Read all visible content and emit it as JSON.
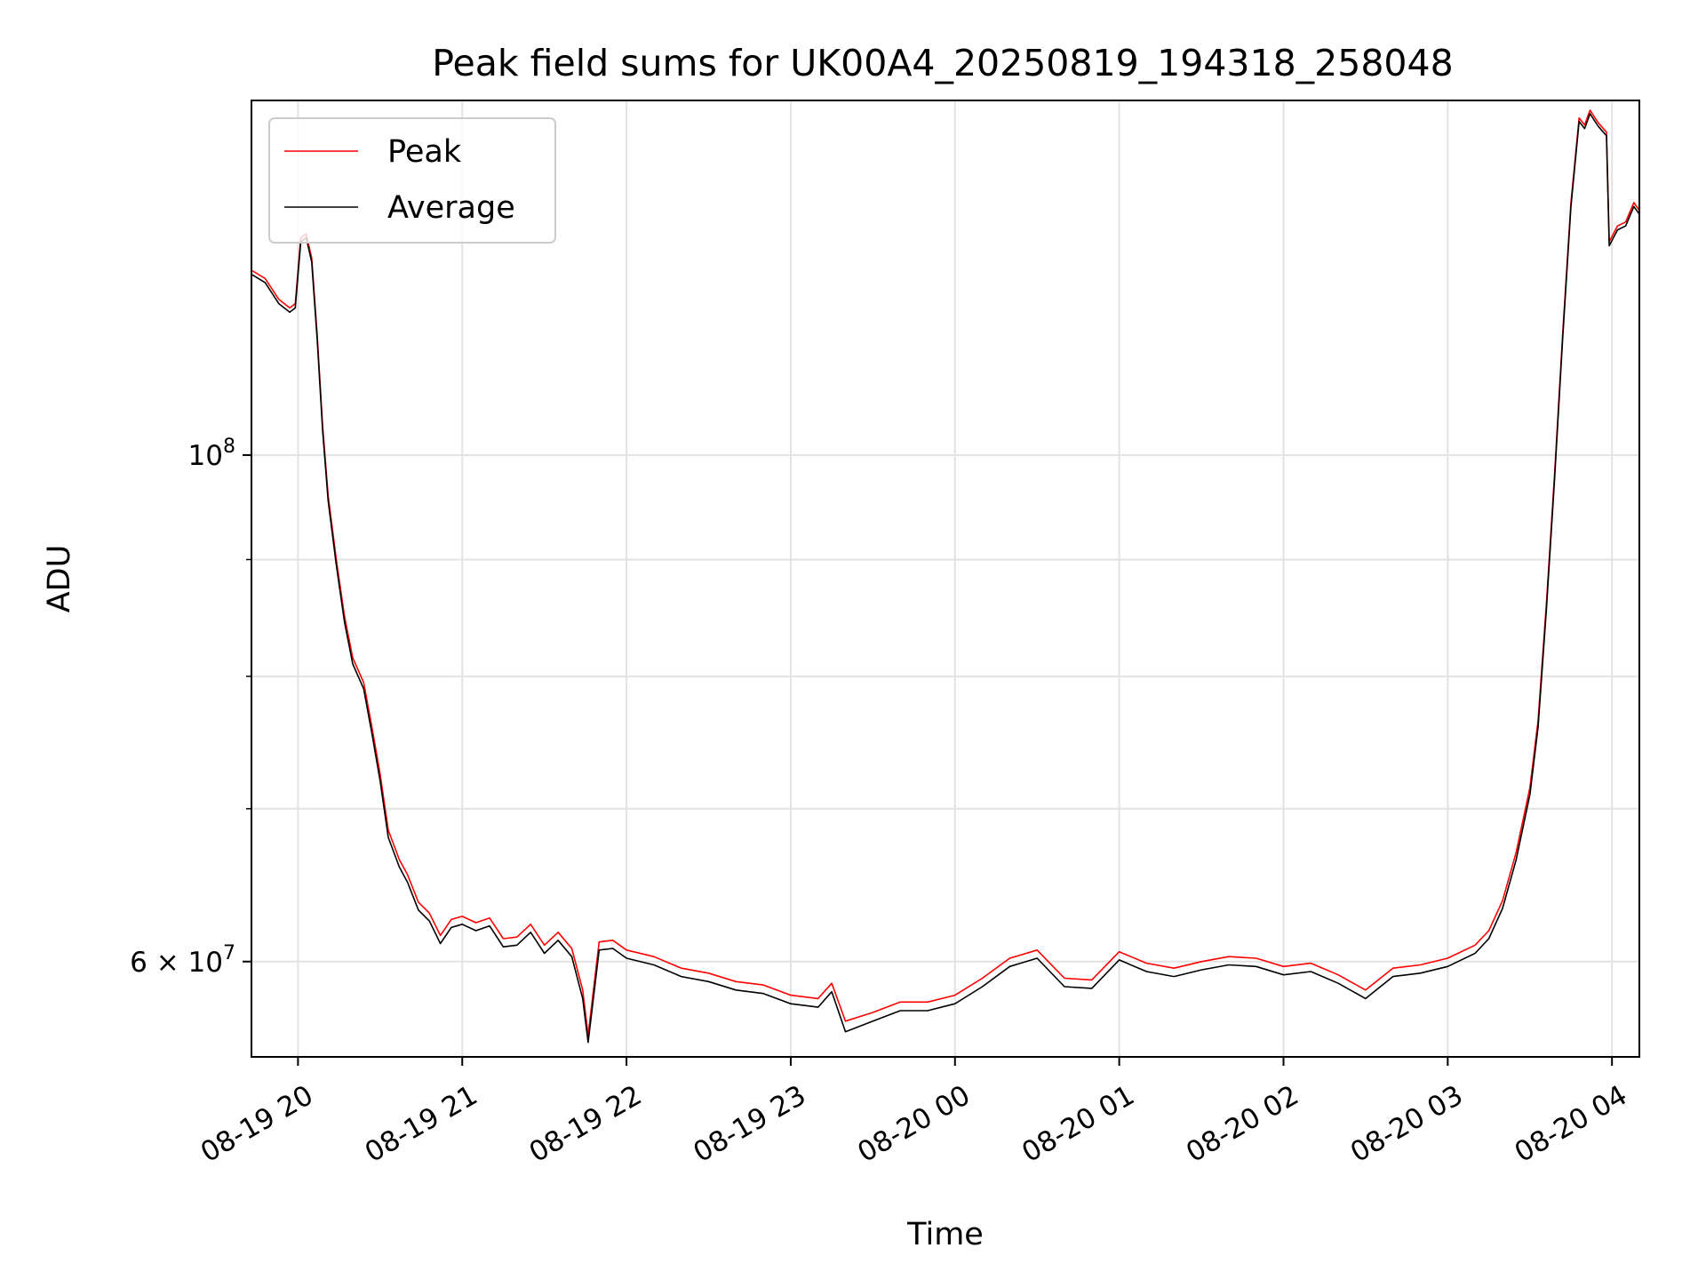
{
  "chart_data": {
    "type": "line",
    "title": "Peak field sums for UK00A4_20250819_194318_258048",
    "xlabel": "Time",
    "ylabel": "ADU",
    "yscale": "log",
    "grid": true,
    "legend_position": "upper-left",
    "xlim": [
      "2025-08-19 19:43",
      "2025-08-20 04:10"
    ],
    "ylim": [
      54500000,
      143000000
    ],
    "x_ticks": [
      {
        "t": "2025-08-19 20:00",
        "label": "08-19 20"
      },
      {
        "t": "2025-08-19 21:00",
        "label": "08-19 21"
      },
      {
        "t": "2025-08-19 22:00",
        "label": "08-19 22"
      },
      {
        "t": "2025-08-19 23:00",
        "label": "08-19 23"
      },
      {
        "t": "2025-08-20 00:00",
        "label": "08-20 00"
      },
      {
        "t": "2025-08-20 01:00",
        "label": "08-20 01"
      },
      {
        "t": "2025-08-20 02:00",
        "label": "08-20 02"
      },
      {
        "t": "2025-08-20 03:00",
        "label": "08-20 03"
      },
      {
        "t": "2025-08-20 04:00",
        "label": "08-20 04"
      }
    ],
    "y_ticks_major": [
      {
        "value": 100000000,
        "label_base": "10",
        "label_exp": "8"
      },
      {
        "value": 60000000,
        "label_base": "6 × 10",
        "label_exp": "7"
      }
    ],
    "y_ticks_minor": [
      70000000,
      80000000,
      90000000
    ],
    "series": [
      {
        "name": "Peak",
        "color": "#ff0000",
        "points": [
          [
            "2025-08-19 19:43",
            120500000
          ],
          [
            "2025-08-19 19:48",
            119500000
          ],
          [
            "2025-08-19 19:53",
            117000000
          ],
          [
            "2025-08-19 19:57",
            116000000
          ],
          [
            "2025-08-19 19:59",
            116500000
          ],
          [
            "2025-08-19 20:01",
            124500000
          ],
          [
            "2025-08-19 20:03",
            125000000
          ],
          [
            "2025-08-19 20:05",
            122000000
          ],
          [
            "2025-08-19 20:07",
            113000000
          ],
          [
            "2025-08-19 20:09",
            103000000
          ],
          [
            "2025-08-19 20:11",
            96000000
          ],
          [
            "2025-08-19 20:14",
            90000000
          ],
          [
            "2025-08-19 20:17",
            85000000
          ],
          [
            "2025-08-19 20:20",
            81500000
          ],
          [
            "2025-08-19 20:24",
            79500000
          ],
          [
            "2025-08-19 20:27",
            76000000
          ],
          [
            "2025-08-19 20:30",
            72500000
          ],
          [
            "2025-08-19 20:33",
            68500000
          ],
          [
            "2025-08-19 20:37",
            66500000
          ],
          [
            "2025-08-19 20:40",
            65500000
          ],
          [
            "2025-08-19 20:44",
            63700000
          ],
          [
            "2025-08-19 20:48",
            63000000
          ],
          [
            "2025-08-19 20:52",
            61600000
          ],
          [
            "2025-08-19 20:56",
            62600000
          ],
          [
            "2025-08-19 21:00",
            62800000
          ],
          [
            "2025-08-19 21:05",
            62400000
          ],
          [
            "2025-08-19 21:10",
            62700000
          ],
          [
            "2025-08-19 21:15",
            61400000
          ],
          [
            "2025-08-19 21:20",
            61500000
          ],
          [
            "2025-08-19 21:25",
            62300000
          ],
          [
            "2025-08-19 21:30",
            61000000
          ],
          [
            "2025-08-19 21:35",
            61800000
          ],
          [
            "2025-08-19 21:40",
            60800000
          ],
          [
            "2025-08-19 21:44",
            58300000
          ],
          [
            "2025-08-19 21:46",
            55700000
          ],
          [
            "2025-08-19 21:50",
            61200000
          ],
          [
            "2025-08-19 21:55",
            61300000
          ],
          [
            "2025-08-19 22:00",
            60700000
          ],
          [
            "2025-08-19 22:10",
            60300000
          ],
          [
            "2025-08-19 22:20",
            59600000
          ],
          [
            "2025-08-19 22:30",
            59300000
          ],
          [
            "2025-08-19 22:40",
            58800000
          ],
          [
            "2025-08-19 22:50",
            58600000
          ],
          [
            "2025-08-19 23:00",
            58000000
          ],
          [
            "2025-08-19 23:10",
            57800000
          ],
          [
            "2025-08-19 23:15",
            58700000
          ],
          [
            "2025-08-19 23:20",
            56500000
          ],
          [
            "2025-08-19 23:30",
            57000000
          ],
          [
            "2025-08-19 23:40",
            57600000
          ],
          [
            "2025-08-19 23:50",
            57600000
          ],
          [
            "2025-08-20 00:00",
            58000000
          ],
          [
            "2025-08-20 00:10",
            59000000
          ],
          [
            "2025-08-20 00:20",
            60200000
          ],
          [
            "2025-08-20 00:30",
            60700000
          ],
          [
            "2025-08-20 00:40",
            59000000
          ],
          [
            "2025-08-20 00:50",
            58900000
          ],
          [
            "2025-08-20 01:00",
            60600000
          ],
          [
            "2025-08-20 01:10",
            59900000
          ],
          [
            "2025-08-20 01:20",
            59600000
          ],
          [
            "2025-08-20 01:30",
            60000000
          ],
          [
            "2025-08-20 01:40",
            60300000
          ],
          [
            "2025-08-20 01:50",
            60200000
          ],
          [
            "2025-08-20 02:00",
            59700000
          ],
          [
            "2025-08-20 02:10",
            59900000
          ],
          [
            "2025-08-20 02:20",
            59200000
          ],
          [
            "2025-08-20 02:30",
            58300000
          ],
          [
            "2025-08-20 02:40",
            59600000
          ],
          [
            "2025-08-20 02:50",
            59800000
          ],
          [
            "2025-08-20 03:00",
            60200000
          ],
          [
            "2025-08-20 03:10",
            61000000
          ],
          [
            "2025-08-20 03:15",
            61900000
          ],
          [
            "2025-08-20 03:20",
            63800000
          ],
          [
            "2025-08-20 03:25",
            67000000
          ],
          [
            "2025-08-20 03:30",
            71500000
          ],
          [
            "2025-08-20 03:33",
            76500000
          ],
          [
            "2025-08-20 03:36",
            86000000
          ],
          [
            "2025-08-20 03:39",
            98000000
          ],
          [
            "2025-08-20 03:42",
            113000000
          ],
          [
            "2025-08-20 03:45",
            129000000
          ],
          [
            "2025-08-20 03:48",
            140500000
          ],
          [
            "2025-08-20 03:50",
            139500000
          ],
          [
            "2025-08-20 03:52",
            141600000
          ],
          [
            "2025-08-20 03:55",
            139800000
          ],
          [
            "2025-08-20 03:58",
            138500000
          ],
          [
            "2025-08-20 03:59",
            124000000
          ],
          [
            "2025-08-20 04:02",
            126000000
          ],
          [
            "2025-08-20 04:05",
            126500000
          ],
          [
            "2025-08-20 04:08",
            129000000
          ],
          [
            "2025-08-20 04:10",
            128000000
          ]
        ]
      },
      {
        "name": "Average",
        "color": "#000000",
        "points": [
          [
            "2025-08-19 19:43",
            120000000
          ],
          [
            "2025-08-19 19:48",
            119000000
          ],
          [
            "2025-08-19 19:53",
            116500000
          ],
          [
            "2025-08-19 19:57",
            115500000
          ],
          [
            "2025-08-19 19:59",
            116000000
          ],
          [
            "2025-08-19 20:01",
            124000000
          ],
          [
            "2025-08-19 20:03",
            124500000
          ],
          [
            "2025-08-19 20:05",
            121500000
          ],
          [
            "2025-08-19 20:07",
            112500000
          ],
          [
            "2025-08-19 20:09",
            102500000
          ],
          [
            "2025-08-19 20:11",
            95500000
          ],
          [
            "2025-08-19 20:14",
            89500000
          ],
          [
            "2025-08-19 20:17",
            84500000
          ],
          [
            "2025-08-19 20:20",
            81000000
          ],
          [
            "2025-08-19 20:24",
            79000000
          ],
          [
            "2025-08-19 20:27",
            75500000
          ],
          [
            "2025-08-19 20:30",
            72000000
          ],
          [
            "2025-08-19 20:33",
            68000000
          ],
          [
            "2025-08-19 20:37",
            66000000
          ],
          [
            "2025-08-19 20:40",
            65000000
          ],
          [
            "2025-08-19 20:44",
            63200000
          ],
          [
            "2025-08-19 20:48",
            62500000
          ],
          [
            "2025-08-19 20:52",
            61100000
          ],
          [
            "2025-08-19 20:56",
            62100000
          ],
          [
            "2025-08-19 21:00",
            62300000
          ],
          [
            "2025-08-19 21:05",
            61900000
          ],
          [
            "2025-08-19 21:10",
            62200000
          ],
          [
            "2025-08-19 21:15",
            60900000
          ],
          [
            "2025-08-19 21:20",
            61000000
          ],
          [
            "2025-08-19 21:25",
            61800000
          ],
          [
            "2025-08-19 21:30",
            60500000
          ],
          [
            "2025-08-19 21:35",
            61300000
          ],
          [
            "2025-08-19 21:40",
            60300000
          ],
          [
            "2025-08-19 21:44",
            57800000
          ],
          [
            "2025-08-19 21:46",
            55300000
          ],
          [
            "2025-08-19 21:50",
            60700000
          ],
          [
            "2025-08-19 21:55",
            60800000
          ],
          [
            "2025-08-19 22:00",
            60200000
          ],
          [
            "2025-08-19 22:10",
            59800000
          ],
          [
            "2025-08-19 22:20",
            59100000
          ],
          [
            "2025-08-19 22:30",
            58800000
          ],
          [
            "2025-08-19 22:40",
            58300000
          ],
          [
            "2025-08-19 22:50",
            58100000
          ],
          [
            "2025-08-19 23:00",
            57500000
          ],
          [
            "2025-08-19 23:10",
            57300000
          ],
          [
            "2025-08-19 23:15",
            58200000
          ],
          [
            "2025-08-19 23:20",
            55900000
          ],
          [
            "2025-08-19 23:30",
            56500000
          ],
          [
            "2025-08-19 23:40",
            57100000
          ],
          [
            "2025-08-19 23:50",
            57100000
          ],
          [
            "2025-08-20 00:00",
            57500000
          ],
          [
            "2025-08-20 00:10",
            58500000
          ],
          [
            "2025-08-20 00:20",
            59700000
          ],
          [
            "2025-08-20 00:30",
            60200000
          ],
          [
            "2025-08-20 00:40",
            58500000
          ],
          [
            "2025-08-20 00:50",
            58400000
          ],
          [
            "2025-08-20 01:00",
            60100000
          ],
          [
            "2025-08-20 01:10",
            59400000
          ],
          [
            "2025-08-20 01:20",
            59100000
          ],
          [
            "2025-08-20 01:30",
            59500000
          ],
          [
            "2025-08-20 01:40",
            59800000
          ],
          [
            "2025-08-20 01:50",
            59700000
          ],
          [
            "2025-08-20 02:00",
            59200000
          ],
          [
            "2025-08-20 02:10",
            59400000
          ],
          [
            "2025-08-20 02:20",
            58700000
          ],
          [
            "2025-08-20 02:30",
            57800000
          ],
          [
            "2025-08-20 02:40",
            59100000
          ],
          [
            "2025-08-20 02:50",
            59300000
          ],
          [
            "2025-08-20 03:00",
            59700000
          ],
          [
            "2025-08-20 03:10",
            60500000
          ],
          [
            "2025-08-20 03:15",
            61400000
          ],
          [
            "2025-08-20 03:20",
            63300000
          ],
          [
            "2025-08-20 03:25",
            66500000
          ],
          [
            "2025-08-20 03:30",
            71000000
          ],
          [
            "2025-08-20 03:33",
            76000000
          ],
          [
            "2025-08-20 03:36",
            85500000
          ],
          [
            "2025-08-20 03:39",
            97500000
          ],
          [
            "2025-08-20 03:42",
            112500000
          ],
          [
            "2025-08-20 03:45",
            128500000
          ],
          [
            "2025-08-20 03:48",
            140000000
          ],
          [
            "2025-08-20 03:50",
            139000000
          ],
          [
            "2025-08-20 03:52",
            141100000
          ],
          [
            "2025-08-20 03:55",
            139300000
          ],
          [
            "2025-08-20 03:58",
            138000000
          ],
          [
            "2025-08-20 03:59",
            123500000
          ],
          [
            "2025-08-20 04:02",
            125500000
          ],
          [
            "2025-08-20 04:05",
            126000000
          ],
          [
            "2025-08-20 04:08",
            128500000
          ],
          [
            "2025-08-20 04:10",
            127500000
          ]
        ]
      }
    ]
  }
}
